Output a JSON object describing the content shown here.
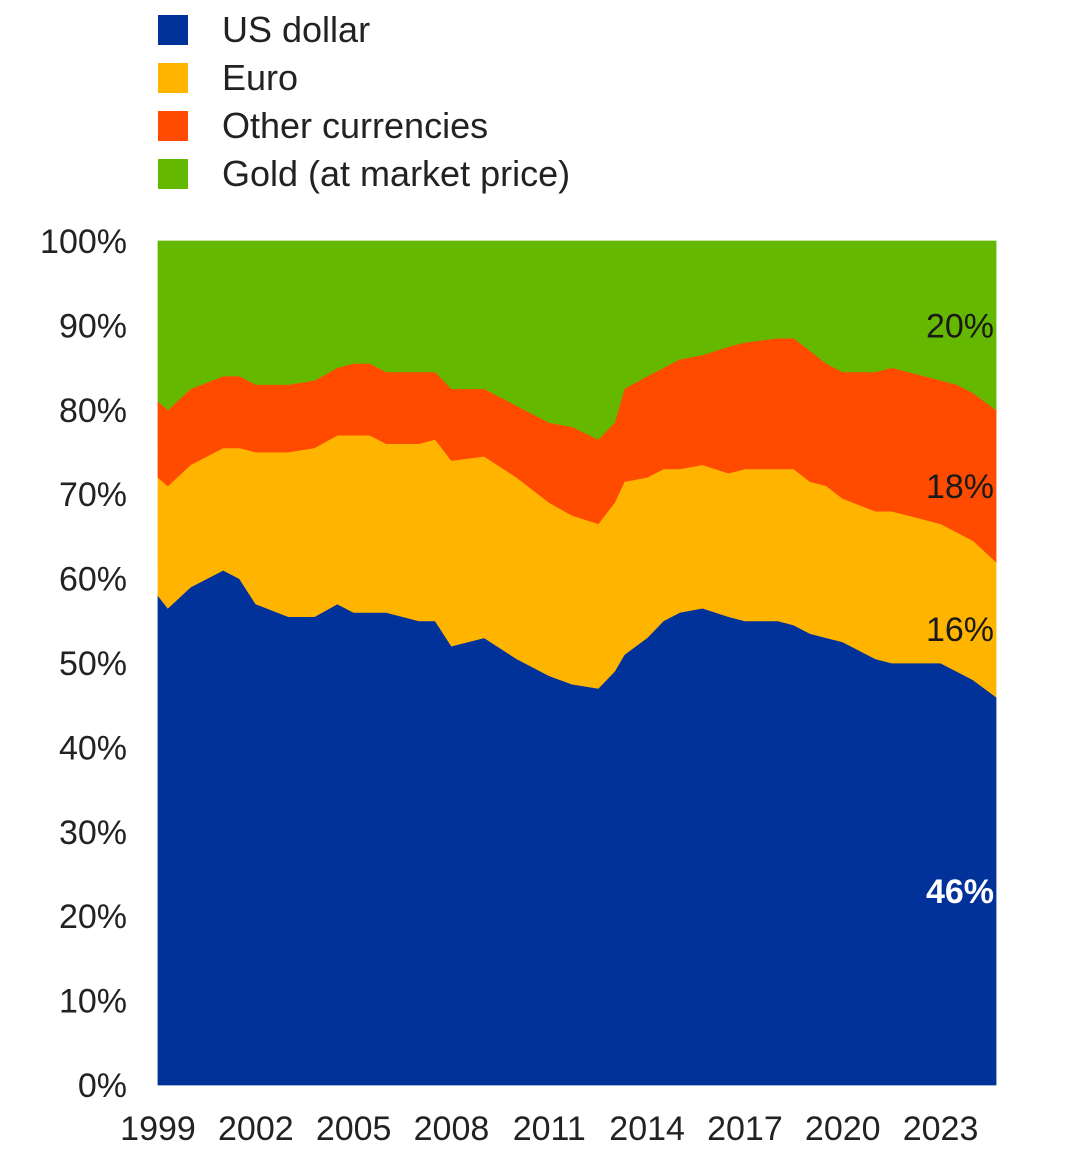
{
  "chart_data": {
    "type": "area",
    "stacked": true,
    "ylim": [
      0,
      100
    ],
    "y_ticks": [
      "0%",
      "10%",
      "20%",
      "30%",
      "40%",
      "50%",
      "60%",
      "70%",
      "80%",
      "90%",
      "100%"
    ],
    "x_ticks": [
      "1999",
      "2002",
      "2005",
      "2008",
      "2011",
      "2014",
      "2017",
      "2020",
      "2023"
    ],
    "x": [
      1999,
      1999.3,
      2000,
      2001,
      2001.5,
      2002,
      2003,
      2003.8,
      2004.5,
      2005,
      2005.5,
      2006,
      2007,
      2007.5,
      2008,
      2009,
      2010,
      2011,
      2011.7,
      2012.5,
      2013,
      2013.3,
      2014,
      2014.5,
      2015,
      2015.7,
      2016.5,
      2017,
      2018,
      2018.5,
      2019,
      2019.5,
      2020,
      2021,
      2021.5,
      2022,
      2023,
      2023.5,
      2024,
      2024.7
    ],
    "series": [
      {
        "name": "US dollar",
        "color": "#003299",
        "values": [
          58,
          56.5,
          59,
          61,
          60,
          57,
          55.5,
          55.5,
          57,
          56,
          56,
          56,
          55,
          55,
          52,
          53,
          50.5,
          48.5,
          47.5,
          47,
          49,
          51,
          53,
          55,
          56,
          56.5,
          55.5,
          55,
          55,
          54.5,
          53.5,
          53,
          52.5,
          50.5,
          50,
          50,
          50,
          49,
          48,
          46
        ]
      },
      {
        "name": "Euro",
        "color": "#FFB400",
        "values": [
          14,
          14.5,
          14.5,
          14.5,
          15.5,
          18,
          19.5,
          20,
          20,
          21,
          21,
          20,
          21,
          21.5,
          22,
          21.5,
          21.5,
          20.5,
          20,
          19.5,
          20,
          20.5,
          19,
          18,
          17,
          17,
          17,
          18,
          18,
          18.5,
          18,
          18,
          17,
          17.5,
          18,
          17.5,
          16.5,
          16.5,
          16.5,
          16
        ]
      },
      {
        "name": "Other currencies",
        "color": "#FF4B00",
        "values": [
          9,
          9,
          9,
          8.5,
          8.5,
          8,
          8,
          8,
          8,
          8.5,
          8.5,
          8.5,
          8.5,
          8,
          8.5,
          8,
          8.5,
          9.5,
          10.5,
          10,
          9.5,
          11,
          12,
          12,
          13,
          13,
          15,
          15,
          15.5,
          15.5,
          15.5,
          14.5,
          15,
          16.5,
          17,
          17,
          17,
          17.5,
          17.5,
          18
        ]
      },
      {
        "name": "Gold (at market price)",
        "color": "#65B800",
        "values": [
          19,
          20,
          17.5,
          16,
          16,
          17,
          17,
          16.5,
          15,
          14.5,
          14.5,
          15.5,
          15.5,
          15.5,
          17.5,
          17.5,
          19.5,
          21.5,
          22,
          23.5,
          21.5,
          17.5,
          16,
          15,
          14,
          13.5,
          12.5,
          12,
          11.5,
          11.5,
          13,
          14.5,
          15.5,
          15.5,
          15,
          15.5,
          16.5,
          16.5,
          18,
          20
        ]
      }
    ],
    "end_labels": [
      {
        "series": "Gold (at market price)",
        "text": "20%",
        "color": "#1a1a1a",
        "bold": false
      },
      {
        "series": "Other currencies",
        "text": "18%",
        "color": "#1a1a1a",
        "bold": false
      },
      {
        "series": "Euro",
        "text": "16%",
        "color": "#1a1a1a",
        "bold": false
      },
      {
        "series": "US dollar",
        "text": "46%",
        "color": "#ffffff",
        "bold": true
      }
    ]
  }
}
